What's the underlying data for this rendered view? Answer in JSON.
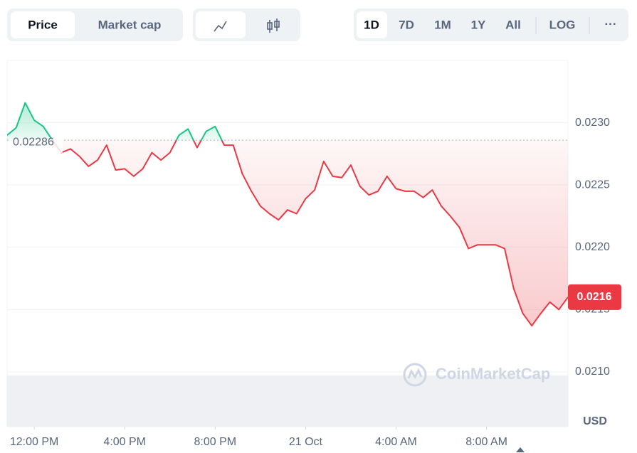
{
  "toolbar": {
    "tabs": [
      "Price",
      "Market cap"
    ],
    "ranges": [
      "1D",
      "7D",
      "1M",
      "1Y",
      "All"
    ],
    "scale": "LOG",
    "more": "···"
  },
  "chart_data": {
    "type": "line",
    "watermark": "CoinMarketCap",
    "y_label": "USD",
    "reference_price": 0.02286,
    "current_price": 0.0216,
    "xlim": [
      10.8,
      35.6
    ],
    "xticks": [
      {
        "value": 12,
        "label": "12:00 PM"
      },
      {
        "value": 16,
        "label": "4:00 PM"
      },
      {
        "value": 20,
        "label": "8:00 PM"
      },
      {
        "value": 24,
        "label": "21 Oct"
      },
      {
        "value": 28,
        "label": "4:00 AM"
      },
      {
        "value": 32,
        "label": "8:00 AM"
      }
    ],
    "ylim": [
      0.02056,
      0.0235
    ],
    "yticks": [
      {
        "value": 0.021,
        "label": "0.0210"
      },
      {
        "value": 0.0215,
        "label": "0.0215"
      },
      {
        "value": 0.022,
        "label": "0.0220"
      },
      {
        "value": 0.0225,
        "label": "0.0225"
      },
      {
        "value": 0.023,
        "label": "0.0230"
      }
    ],
    "grid": true,
    "x": [
      10.8,
      11.2,
      11.6,
      12.0,
      12.4,
      12.8,
      13.2,
      13.6,
      14.0,
      14.4,
      14.8,
      15.2,
      15.6,
      16.0,
      16.4,
      16.8,
      17.2,
      17.6,
      18.0,
      18.4,
      18.8,
      19.2,
      19.6,
      20.0,
      20.4,
      20.8,
      21.2,
      21.6,
      22.0,
      22.4,
      22.8,
      23.2,
      23.6,
      24.0,
      24.4,
      24.8,
      25.2,
      25.6,
      26.0,
      26.4,
      26.8,
      27.2,
      27.6,
      28.0,
      28.4,
      28.8,
      29.2,
      29.6,
      30.0,
      30.4,
      30.8,
      31.2,
      31.6,
      32.0,
      32.4,
      32.8,
      33.2,
      33.6,
      34.0,
      34.4,
      34.8,
      35.2,
      35.6
    ],
    "series": [
      {
        "name": "Price",
        "color": "#ea3943",
        "up_color": "#16c784",
        "values": [
          0.0229,
          0.02296,
          0.02316,
          0.02302,
          0.02297,
          0.02286,
          0.02276,
          0.02279,
          0.02273,
          0.02265,
          0.0227,
          0.02282,
          0.02262,
          0.02263,
          0.02257,
          0.02263,
          0.02276,
          0.0227,
          0.02276,
          0.0229,
          0.02295,
          0.0228,
          0.02293,
          0.02297,
          0.02282,
          0.02282,
          0.02259,
          0.02245,
          0.02233,
          0.02227,
          0.02222,
          0.0223,
          0.02227,
          0.02239,
          0.02246,
          0.02269,
          0.02257,
          0.02256,
          0.02266,
          0.02249,
          0.02242,
          0.02245,
          0.02257,
          0.02247,
          0.02245,
          0.02245,
          0.0224,
          0.02246,
          0.02233,
          0.02225,
          0.02216,
          0.02199,
          0.02202,
          0.02202,
          0.02202,
          0.02199,
          0.02167,
          0.02147,
          0.02137,
          0.02147,
          0.02156,
          0.0215,
          0.0216
        ]
      }
    ]
  }
}
